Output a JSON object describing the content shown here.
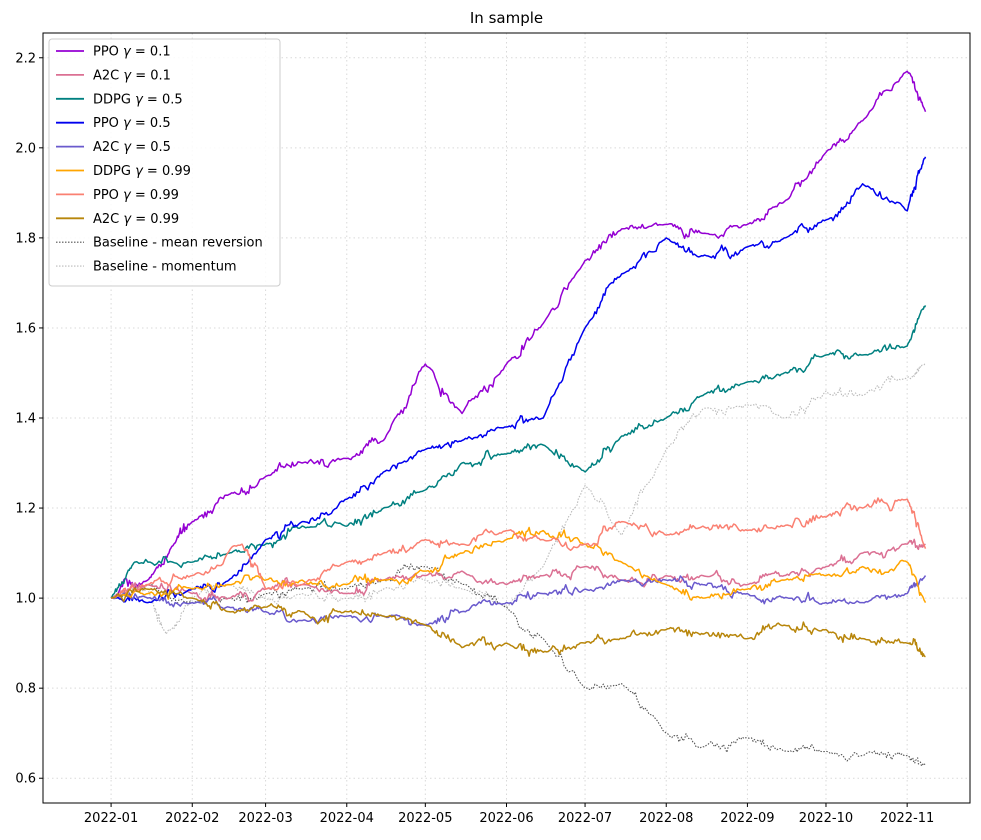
{
  "chart_data": {
    "type": "line",
    "title": "In sample",
    "xlabel": "",
    "ylabel": "",
    "x_ticks": [
      "2022-01",
      "2022-02",
      "2022-03",
      "2022-04",
      "2022-05",
      "2022-06",
      "2022-07",
      "2022-08",
      "2022-09",
      "2022-10",
      "2022-11"
    ],
    "y_ticks": [
      0.6,
      0.8,
      1.0,
      1.2,
      1.4,
      1.6,
      1.8,
      2.0,
      2.2
    ],
    "xlim": [
      "2021-12-06",
      "2022-11-25"
    ],
    "ylim": [
      0.545,
      2.255
    ],
    "grid": true,
    "legend_position": "top-left",
    "series": [
      {
        "name": "PPO γ = 0.1",
        "legend_label": "PPO",
        "gamma": "0.1",
        "color": "#9400D3",
        "style": "solid",
        "x": [
          "2022-01-01",
          "2022-01-15",
          "2022-01-25",
          "2022-02-01",
          "2022-02-15",
          "2022-03-01",
          "2022-03-15",
          "2022-04-01",
          "2022-04-15",
          "2022-05-01",
          "2022-05-15",
          "2022-06-01",
          "2022-06-15",
          "2022-07-01",
          "2022-07-15",
          "2022-08-01",
          "2022-08-15",
          "2022-09-01",
          "2022-09-15",
          "2022-10-01",
          "2022-10-15",
          "2022-11-01",
          "2022-11-08"
        ],
        "y": [
          1.0,
          1.04,
          1.12,
          1.17,
          1.23,
          1.27,
          1.3,
          1.31,
          1.35,
          1.52,
          1.41,
          1.52,
          1.61,
          1.75,
          1.82,
          1.83,
          1.81,
          1.83,
          1.88,
          1.99,
          2.06,
          2.17,
          2.08
        ]
      },
      {
        "name": "A2C γ = 0.1",
        "legend_label": "A2C",
        "gamma": "0.1",
        "color": "#DB7093",
        "style": "solid",
        "x": [
          "2022-01-01",
          "2022-01-15",
          "2022-02-01",
          "2022-02-15",
          "2022-03-01",
          "2022-03-15",
          "2022-04-01",
          "2022-04-15",
          "2022-05-01",
          "2022-05-15",
          "2022-06-01",
          "2022-06-15",
          "2022-07-01",
          "2022-07-15",
          "2022-08-01",
          "2022-08-15",
          "2022-09-01",
          "2022-09-15",
          "2022-10-01",
          "2022-10-15",
          "2022-11-01",
          "2022-11-08"
        ],
        "y": [
          1.0,
          1.03,
          1.01,
          1.0,
          1.02,
          1.03,
          1.01,
          1.04,
          1.05,
          1.06,
          1.03,
          1.05,
          1.07,
          1.04,
          1.05,
          1.05,
          1.03,
          1.05,
          1.07,
          1.1,
          1.12,
          1.12
        ]
      },
      {
        "name": "DDPG γ = 0.5",
        "legend_label": "DDPG",
        "gamma": "0.5",
        "color": "#008080",
        "style": "solid",
        "x": [
          "2022-01-01",
          "2022-01-10",
          "2022-02-01",
          "2022-02-15",
          "2022-03-01",
          "2022-03-15",
          "2022-04-01",
          "2022-04-15",
          "2022-05-01",
          "2022-05-15",
          "2022-06-01",
          "2022-06-15",
          "2022-07-01",
          "2022-07-15",
          "2022-08-01",
          "2022-08-15",
          "2022-09-01",
          "2022-09-15",
          "2022-10-01",
          "2022-10-15",
          "2022-11-01",
          "2022-11-08"
        ],
        "y": [
          1.0,
          1.08,
          1.08,
          1.1,
          1.12,
          1.16,
          1.16,
          1.2,
          1.24,
          1.3,
          1.32,
          1.34,
          1.28,
          1.36,
          1.4,
          1.45,
          1.48,
          1.5,
          1.54,
          1.54,
          1.56,
          1.65
        ]
      },
      {
        "name": "PPO γ = 0.5",
        "legend_label": "PPO",
        "gamma": "0.5",
        "color": "#0000EE",
        "style": "solid",
        "x": [
          "2022-01-01",
          "2022-01-15",
          "2022-02-01",
          "2022-02-15",
          "2022-03-01",
          "2022-03-15",
          "2022-04-01",
          "2022-04-15",
          "2022-05-01",
          "2022-05-15",
          "2022-06-01",
          "2022-06-15",
          "2022-07-01",
          "2022-07-15",
          "2022-08-01",
          "2022-08-15",
          "2022-09-01",
          "2022-09-15",
          "2022-10-01",
          "2022-10-15",
          "2022-11-01",
          "2022-11-08"
        ],
        "y": [
          1.0,
          0.99,
          1.02,
          1.04,
          1.13,
          1.17,
          1.22,
          1.28,
          1.33,
          1.35,
          1.38,
          1.4,
          1.6,
          1.72,
          1.8,
          1.76,
          1.78,
          1.8,
          1.84,
          1.92,
          1.86,
          1.98
        ]
      },
      {
        "name": "A2C γ = 0.5",
        "legend_label": "A2C",
        "gamma": "0.5",
        "color": "#6A5ACD",
        "style": "solid",
        "x": [
          "2022-01-01",
          "2022-01-15",
          "2022-02-01",
          "2022-02-15",
          "2022-03-01",
          "2022-03-15",
          "2022-04-01",
          "2022-04-15",
          "2022-05-01",
          "2022-05-15",
          "2022-06-01",
          "2022-06-15",
          "2022-07-01",
          "2022-07-15",
          "2022-08-01",
          "2022-08-15",
          "2022-09-01",
          "2022-09-15",
          "2022-10-01",
          "2022-10-15",
          "2022-11-01",
          "2022-11-08"
        ],
        "y": [
          1.0,
          1.0,
          0.99,
          0.98,
          0.97,
          0.95,
          0.96,
          0.96,
          0.94,
          0.97,
          0.99,
          1.01,
          1.02,
          1.04,
          1.04,
          1.03,
          1.01,
          1.0,
          0.99,
          0.99,
          1.01,
          1.05
        ]
      },
      {
        "name": "DDPG γ = 0.99",
        "legend_label": "DDPG",
        "gamma": "0.99",
        "color": "#FFA500",
        "style": "solid",
        "x": [
          "2022-01-01",
          "2022-01-15",
          "2022-02-01",
          "2022-02-15",
          "2022-03-01",
          "2022-03-15",
          "2022-04-01",
          "2022-04-15",
          "2022-05-01",
          "2022-05-15",
          "2022-06-01",
          "2022-06-15",
          "2022-07-01",
          "2022-07-15",
          "2022-08-01",
          "2022-08-15",
          "2022-09-01",
          "2022-09-15",
          "2022-10-01",
          "2022-10-15",
          "2022-11-01",
          "2022-11-08"
        ],
        "y": [
          1.0,
          1.01,
          1.02,
          1.03,
          1.04,
          1.04,
          1.03,
          1.04,
          1.06,
          1.1,
          1.13,
          1.15,
          1.12,
          1.08,
          1.03,
          1.0,
          1.02,
          1.04,
          1.05,
          1.07,
          1.08,
          0.99
        ]
      },
      {
        "name": "PPO γ = 0.99",
        "legend_label": "PPO",
        "gamma": "0.99",
        "color": "#FA8072",
        "style": "solid",
        "x": [
          "2022-01-01",
          "2022-01-15",
          "2022-02-01",
          "2022-02-20",
          "2022-03-01",
          "2022-03-15",
          "2022-04-01",
          "2022-04-15",
          "2022-05-01",
          "2022-05-15",
          "2022-06-01",
          "2022-06-15",
          "2022-07-01",
          "2022-07-15",
          "2022-08-01",
          "2022-08-15",
          "2022-09-01",
          "2022-09-15",
          "2022-10-01",
          "2022-10-15",
          "2022-11-01",
          "2022-11-08"
        ],
        "y": [
          1.0,
          1.03,
          1.05,
          1.12,
          1.02,
          1.03,
          1.08,
          1.1,
          1.13,
          1.12,
          1.15,
          1.13,
          1.12,
          1.17,
          1.14,
          1.16,
          1.15,
          1.16,
          1.18,
          1.2,
          1.22,
          1.11
        ]
      },
      {
        "name": "A2C γ = 0.99",
        "legend_label": "A2C",
        "gamma": "0.99",
        "color": "#B8860B",
        "style": "solid",
        "x": [
          "2022-01-01",
          "2022-01-15",
          "2022-02-01",
          "2022-02-15",
          "2022-03-01",
          "2022-03-15",
          "2022-04-01",
          "2022-04-15",
          "2022-05-01",
          "2022-05-15",
          "2022-06-01",
          "2022-06-15",
          "2022-07-01",
          "2022-07-15",
          "2022-08-01",
          "2022-08-15",
          "2022-09-01",
          "2022-09-15",
          "2022-10-01",
          "2022-10-15",
          "2022-11-01",
          "2022-11-08"
        ],
        "y": [
          1.0,
          1.02,
          1.0,
          0.97,
          0.98,
          0.97,
          0.97,
          0.96,
          0.94,
          0.89,
          0.9,
          0.88,
          0.9,
          0.91,
          0.93,
          0.92,
          0.91,
          0.94,
          0.93,
          0.91,
          0.9,
          0.87
        ]
      },
      {
        "name": "Baseline - mean reversion",
        "legend_label": "Baseline - mean reversion",
        "gamma": "",
        "color": "#555555",
        "style": "dotted",
        "x": [
          "2022-01-01",
          "2022-01-15",
          "2022-02-01",
          "2022-02-15",
          "2022-03-01",
          "2022-03-15",
          "2022-04-01",
          "2022-04-15",
          "2022-05-01",
          "2022-05-15",
          "2022-06-01",
          "2022-06-15",
          "2022-07-01",
          "2022-07-15",
          "2022-08-01",
          "2022-08-15",
          "2022-09-01",
          "2022-09-15",
          "2022-10-01",
          "2022-10-15",
          "2022-11-01",
          "2022-11-08"
        ],
        "y": [
          1.0,
          1.03,
          0.99,
          1.0,
          1.01,
          1.02,
          1.02,
          1.04,
          1.07,
          1.03,
          0.98,
          0.91,
          0.8,
          0.81,
          0.7,
          0.67,
          0.69,
          0.66,
          0.66,
          0.65,
          0.65,
          0.63
        ]
      },
      {
        "name": "Baseline - momentum",
        "legend_label": "Baseline - momentum",
        "gamma": "",
        "color": "#BBBBBB",
        "style": "dotted",
        "x": [
          "2022-01-01",
          "2022-01-15",
          "2022-01-22",
          "2022-02-01",
          "2022-02-15",
          "2022-03-01",
          "2022-03-15",
          "2022-04-01",
          "2022-04-15",
          "2022-05-01",
          "2022-05-15",
          "2022-06-01",
          "2022-06-15",
          "2022-07-01",
          "2022-07-15",
          "2022-08-01",
          "2022-08-15",
          "2022-09-01",
          "2022-09-15",
          "2022-10-01",
          "2022-10-15",
          "2022-11-01",
          "2022-11-08"
        ],
        "y": [
          1.0,
          1.02,
          0.92,
          1.0,
          1.03,
          1.0,
          1.01,
          1.0,
          1.02,
          1.04,
          1.02,
          0.98,
          1.07,
          1.25,
          1.14,
          1.33,
          1.42,
          1.43,
          1.4,
          1.46,
          1.45,
          1.49,
          1.52
        ]
      }
    ]
  }
}
